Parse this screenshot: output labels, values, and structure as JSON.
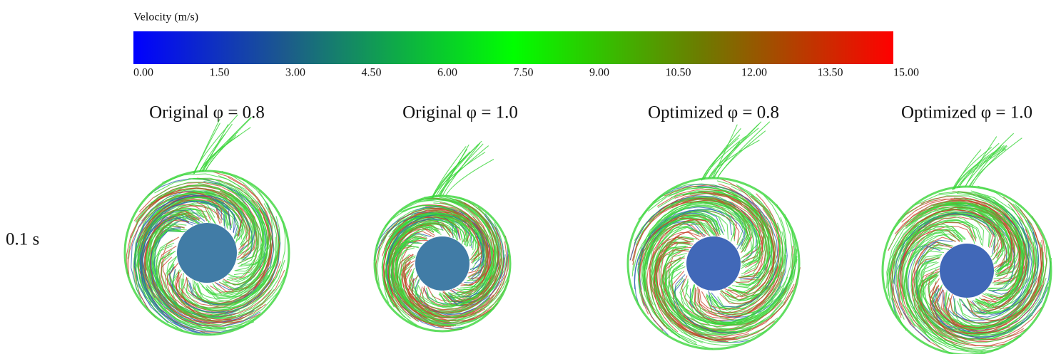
{
  "colorbar": {
    "title": "Velocity (m/s)",
    "ticks": [
      "0.00",
      "1.50",
      "3.00",
      "4.50",
      "6.00",
      "7.50",
      "9.00",
      "10.50",
      "12.00",
      "13.50",
      "15.00"
    ]
  },
  "row_label": "0.1 s",
  "panels": [
    {
      "title": "Original φ = 0.8"
    },
    {
      "title": "Original φ = 1.0"
    },
    {
      "title": "Optimized φ = 0.8"
    },
    {
      "title": "Optimized φ = 1.0"
    }
  ]
}
